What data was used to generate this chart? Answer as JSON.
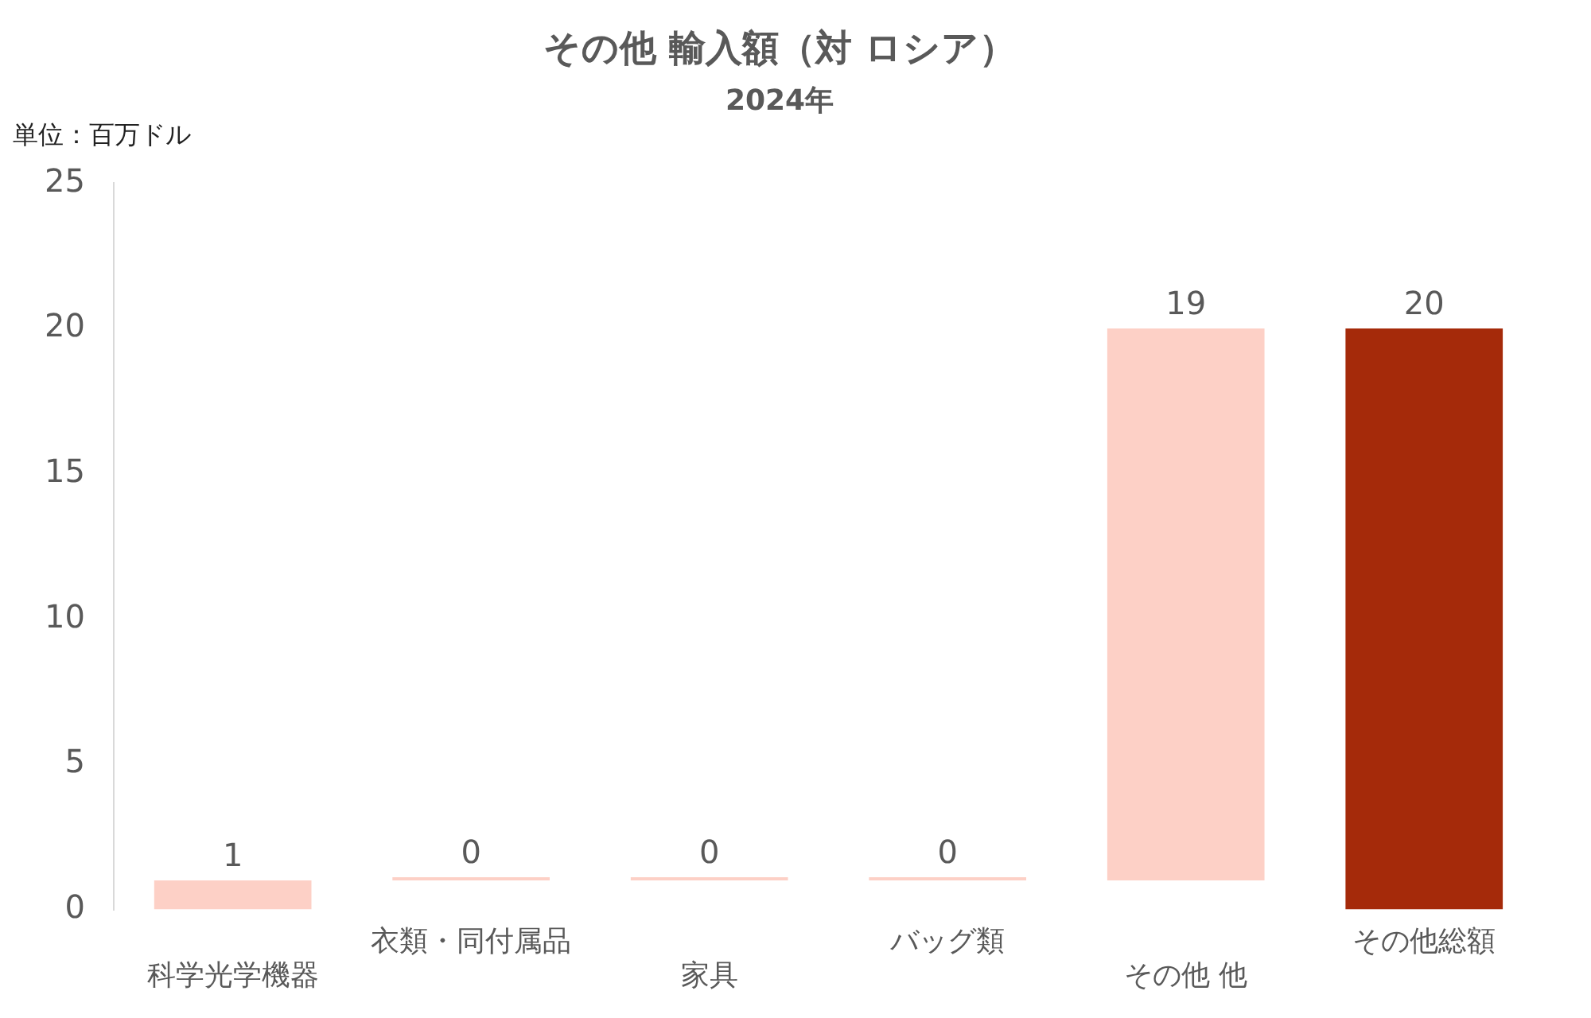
{
  "chart_data": {
    "type": "bar",
    "title": "その他 輸入額（対 ロシア）",
    "subtitle": "2024年",
    "annotations": [
      "単位：百万ドル"
    ],
    "categories": [
      "科学光学機器",
      "衣類・同付属品",
      "家具",
      "バッグ類",
      "その他 他",
      "その他総額"
    ],
    "values": [
      1,
      0,
      0,
      0,
      19,
      20
    ],
    "base": [
      0,
      1,
      1,
      1,
      1,
      0
    ],
    "colors": [
      "#fdd0c6",
      "#fdd0c6",
      "#fdd0c6",
      "#fdd0c6",
      "#fdd0c6",
      "#a52a0a"
    ],
    "ylim": [
      0,
      25
    ],
    "yticks": [
      0,
      5,
      10,
      15,
      20,
      25
    ],
    "grid": false,
    "legend": false,
    "data_labels": true
  }
}
